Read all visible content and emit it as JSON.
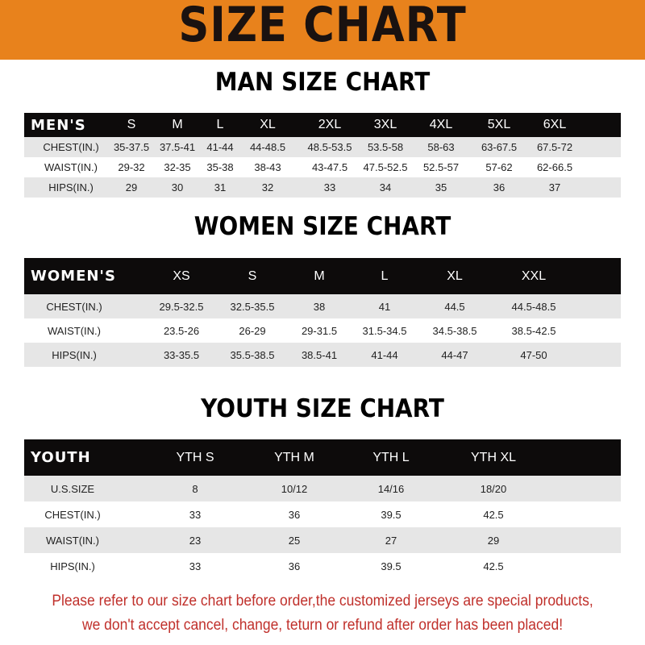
{
  "banner": {
    "title": "SIZE CHART",
    "color": "#e8821c"
  },
  "men": {
    "title": "MAN SIZE CHART",
    "header": [
      "MEN'S",
      "S",
      "M",
      "L",
      "XL",
      "2XL",
      "3XL",
      "4XL",
      "5XL",
      "6XL"
    ],
    "rows": [
      [
        "CHEST(IN.)",
        "35-37.5",
        "37.5-41",
        "41-44",
        "44-48.5",
        "48.5-53.5",
        "53.5-58",
        "58-63",
        "63-67.5",
        "67.5-72"
      ],
      [
        "WAIST(IN.)",
        "29-32",
        "32-35",
        "35-38",
        "38-43",
        "43-47.5",
        "47.5-52.5",
        "52.5-57",
        "57-62",
        "62-66.5"
      ],
      [
        "HIPS(IN.)",
        "29",
        "30",
        "31",
        "32",
        "33",
        "34",
        "35",
        "36",
        "37"
      ]
    ]
  },
  "women": {
    "title": "WOMEN SIZE CHART",
    "header": [
      "WOMEN'S",
      "XS",
      "S",
      "M",
      "L",
      "XL",
      "XXL"
    ],
    "rows": [
      [
        "CHEST(IN.)",
        "29.5-32.5",
        "32.5-35.5",
        "38",
        "41",
        "44.5",
        "44.5-48.5"
      ],
      [
        "WAIST(IN.)",
        "23.5-26",
        "26-29",
        "29-31.5",
        "31.5-34.5",
        "34.5-38.5",
        "38.5-42.5"
      ],
      [
        "HIPS(IN.)",
        "33-35.5",
        "35.5-38.5",
        "38.5-41",
        "41-44",
        "44-47",
        "47-50"
      ]
    ]
  },
  "youth": {
    "title": "YOUTH SIZE CHART",
    "header": [
      "YOUTH",
      "YTH S",
      "YTH M",
      "YTH L",
      "YTH XL"
    ],
    "rows": [
      [
        "U.S.SIZE",
        "8",
        "10/12",
        "14/16",
        "18/20"
      ],
      [
        "CHEST(IN.)",
        "33",
        "36",
        "39.5",
        "42.5"
      ],
      [
        "WAIST(IN.)",
        "23",
        "25",
        "27",
        "29"
      ],
      [
        "HIPS(IN.)",
        "33",
        "36",
        "39.5",
        "42.5"
      ]
    ]
  },
  "notice": {
    "line1": "Please refer to our size chart before order,the customized jerseys are special products,",
    "line2": "we don't accept cancel, change, teturn or refund after order has been placed!",
    "color": "#c0302b"
  }
}
